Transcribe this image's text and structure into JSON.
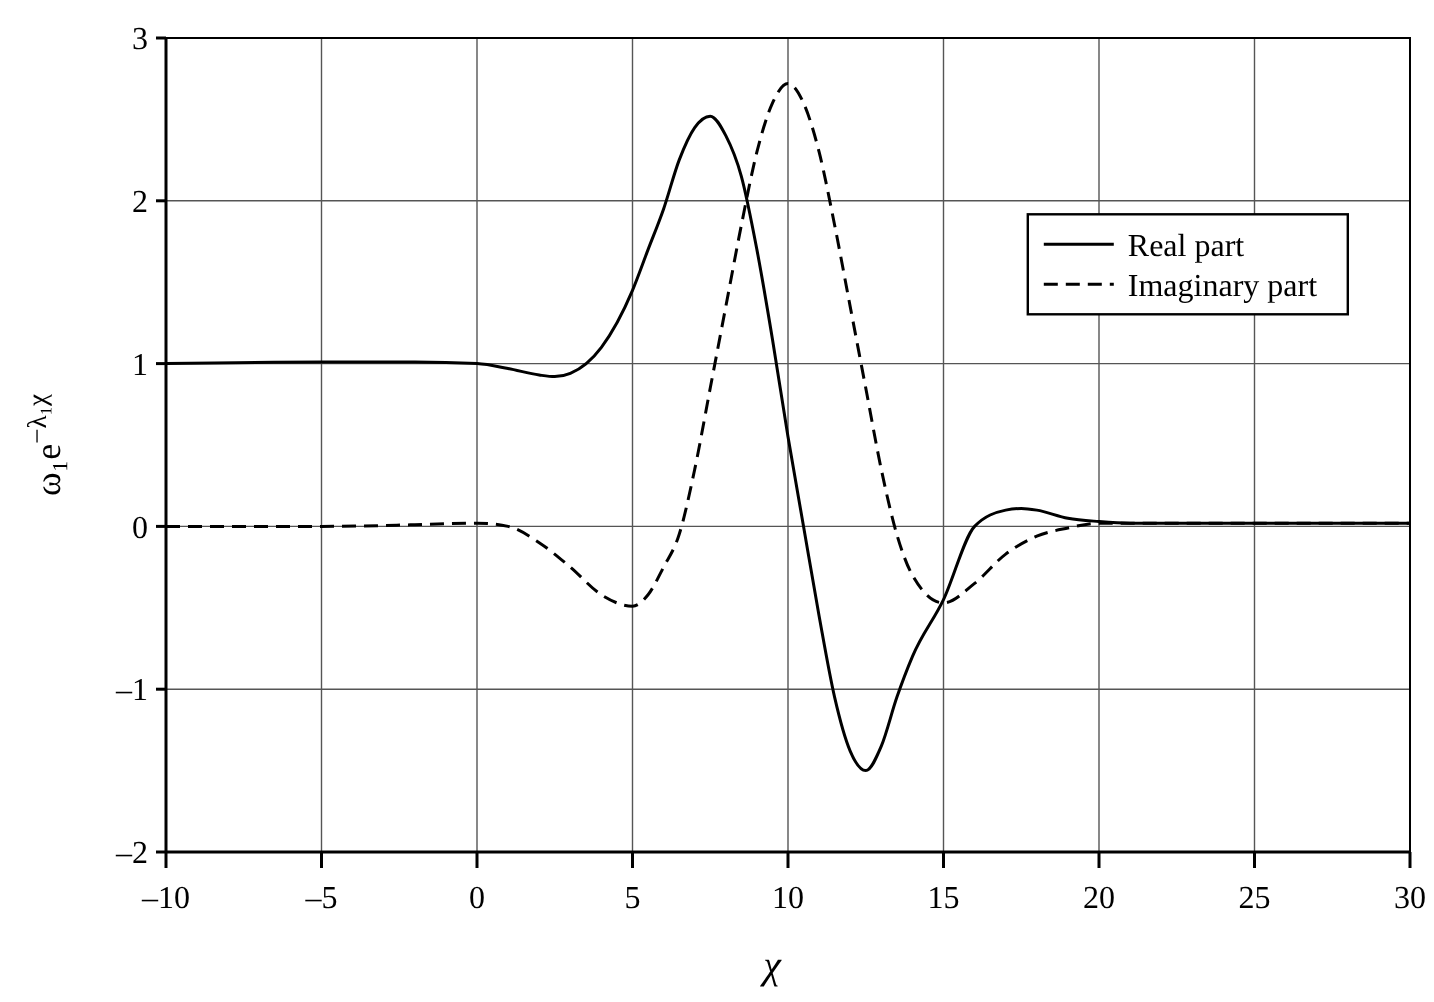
{
  "chart_data": {
    "type": "line",
    "xlabel": "χ",
    "ylabel": "ω₁e$^{−λ₁χ}$",
    "xlim": [
      -10,
      30
    ],
    "ylim": [
      -2,
      3
    ],
    "xticks": [
      {
        "value": -10,
        "label": "–10"
      },
      {
        "value": -5,
        "label": "–5"
      },
      0,
      5,
      10,
      15,
      20,
      25,
      30
    ],
    "yticks": [
      {
        "value": -2,
        "label": "–2"
      },
      {
        "value": -1,
        "label": "–1"
      },
      0,
      1,
      2,
      3
    ],
    "grid": true,
    "legend": "right",
    "marker": "none",
    "series": [
      {
        "name": "Real part",
        "color": "#000000",
        "line_style": "solid",
        "x": [
          -10,
          -5,
          -2,
          0,
          1,
          2,
          2.5,
          3,
          4,
          5,
          5.5,
          6,
          6.5,
          7,
          7.5,
          8,
          8.5,
          9,
          9.5,
          10,
          10.5,
          11,
          11.5,
          12,
          12.5,
          13,
          13.5,
          14,
          15,
          16,
          17,
          17.5,
          18,
          19,
          20,
          21,
          25,
          30
        ],
        "values": [
          1,
          1.01,
          1.01,
          1,
          0.97,
          0.93,
          0.92,
          0.94,
          1.1,
          1.45,
          1.7,
          1.95,
          2.25,
          2.45,
          2.52,
          2.4,
          2.15,
          1.7,
          1.15,
          0.55,
          0.0,
          -0.55,
          -1.05,
          -1.38,
          -1.5,
          -1.35,
          -1.05,
          -0.8,
          -0.45,
          0,
          0.1,
          0.11,
          0.1,
          0.05,
          0.03,
          0.02,
          0.02,
          0.02
        ]
      },
      {
        "name": "Imaginary part",
        "color": "#000000",
        "line_style": "dashed",
        "x": [
          -10,
          -5,
          -2,
          0,
          1,
          2,
          3,
          4,
          5,
          5.5,
          6,
          6.5,
          7,
          7.5,
          8,
          8.5,
          9,
          9.5,
          10,
          10.5,
          11,
          11.5,
          12,
          12.5,
          13,
          13.5,
          14,
          15,
          16,
          17,
          18,
          19,
          20,
          21,
          25,
          30
        ],
        "values": [
          0,
          0,
          0.01,
          0.02,
          0,
          -0.1,
          -0.25,
          -0.42,
          -0.49,
          -0.42,
          -0.25,
          -0.05,
          0.35,
          0.85,
          1.35,
          1.85,
          2.3,
          2.6,
          2.72,
          2.6,
          2.3,
          1.85,
          1.35,
          0.85,
          0.35,
          -0.05,
          -0.3,
          -0.47,
          -0.35,
          -0.17,
          -0.06,
          -0.01,
          0.02,
          0.02,
          0.02,
          0.02
        ]
      }
    ]
  }
}
